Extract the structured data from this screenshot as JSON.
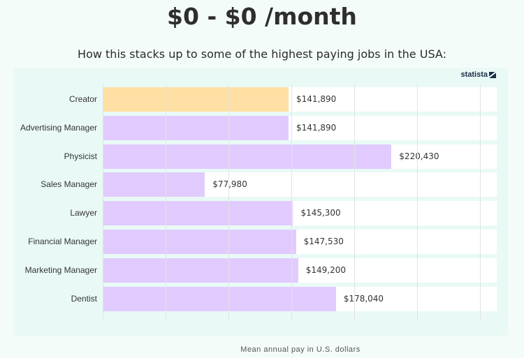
{
  "header": {
    "title": "$0 - $0 /month",
    "subtitle": "How this stacks up to some of the highest paying jobs in the USA:"
  },
  "brand": {
    "name": "statista",
    "icon": "statista-logo-icon"
  },
  "colors": {
    "highlight_bar": "#fedfa4",
    "bar": "#e1cbfe",
    "panel": "#e9faf6",
    "page": "#f4fcfa"
  },
  "chart_data": {
    "type": "bar",
    "orientation": "horizontal",
    "title": "How this stacks up to some of the highest paying jobs in the USA:",
    "xlabel": "Mean annual pay in U.S. dollars",
    "ylabel": "",
    "categories": [
      "Creator",
      "Advertising Manager",
      "Physicist",
      "Sales Manager",
      "Lawyer",
      "Financial Manager",
      "Marketing Manager",
      "Dentist"
    ],
    "values": [
      141890,
      141890,
      220430,
      77980,
      145300,
      147530,
      149200,
      178040
    ],
    "value_labels": [
      "$141,890",
      "$141,890",
      "$220,430",
      "$77,980",
      "$145,300",
      "$147,530",
      "$149,200",
      "$178,040"
    ],
    "highlighted_category": "Creator",
    "xlim": [
      0,
      300000
    ],
    "grid": true,
    "legend": null
  },
  "footer": {
    "axis_label": "Mean annual pay in U.S. dollars"
  }
}
